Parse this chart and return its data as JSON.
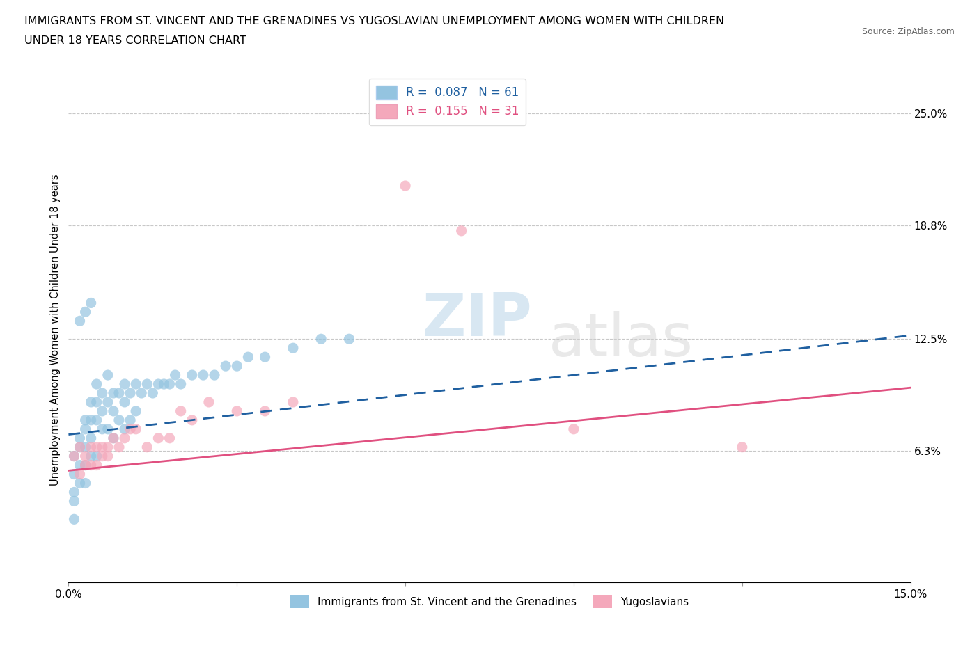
{
  "title_line1": "IMMIGRANTS FROM ST. VINCENT AND THE GRENADINES VS YUGOSLAVIAN UNEMPLOYMENT AMONG WOMEN WITH CHILDREN",
  "title_line2": "UNDER 18 YEARS CORRELATION CHART",
  "source": "Source: ZipAtlas.com",
  "ylabel": "Unemployment Among Women with Children Under 18 years",
  "xlim": [
    0.0,
    0.15
  ],
  "ylim": [
    -0.01,
    0.27
  ],
  "xticks": [
    0.0,
    0.03,
    0.06,
    0.09,
    0.12,
    0.15
  ],
  "xticklabels": [
    "0.0%",
    "",
    "",
    "",
    "",
    "15.0%"
  ],
  "ytick_positions": [
    0.063,
    0.125,
    0.188,
    0.25
  ],
  "ytick_labels": [
    "6.3%",
    "12.5%",
    "18.8%",
    "25.0%"
  ],
  "grid_color": "#c8c8c8",
  "background_color": "#ffffff",
  "blue_color": "#94c4e0",
  "pink_color": "#f4a8bb",
  "blue_line_color": "#2060a0",
  "pink_line_color": "#e05080",
  "R1": 0.087,
  "N1": 61,
  "R2": 0.155,
  "N2": 31,
  "legend_label1": "Immigrants from St. Vincent and the Grenadines",
  "legend_label2": "Yugoslavians",
  "watermark_zip": "ZIP",
  "watermark_atlas": "atlas",
  "blue_trend_start_y": 0.072,
  "blue_trend_end_y": 0.127,
  "pink_trend_start_y": 0.052,
  "pink_trend_end_y": 0.098,
  "blue_scatter_x": [
    0.001,
    0.001,
    0.001,
    0.001,
    0.001,
    0.002,
    0.002,
    0.002,
    0.002,
    0.003,
    0.003,
    0.003,
    0.003,
    0.003,
    0.004,
    0.004,
    0.004,
    0.004,
    0.005,
    0.005,
    0.005,
    0.005,
    0.006,
    0.006,
    0.006,
    0.007,
    0.007,
    0.007,
    0.008,
    0.008,
    0.008,
    0.009,
    0.009,
    0.01,
    0.01,
    0.01,
    0.011,
    0.011,
    0.012,
    0.012,
    0.013,
    0.014,
    0.015,
    0.016,
    0.017,
    0.018,
    0.019,
    0.02,
    0.022,
    0.024,
    0.026,
    0.028,
    0.03,
    0.032,
    0.035,
    0.04,
    0.045,
    0.05,
    0.002,
    0.003,
    0.004
  ],
  "blue_scatter_y": [
    0.05,
    0.04,
    0.06,
    0.035,
    0.025,
    0.07,
    0.065,
    0.055,
    0.045,
    0.08,
    0.075,
    0.065,
    0.055,
    0.045,
    0.09,
    0.08,
    0.07,
    0.06,
    0.1,
    0.09,
    0.08,
    0.06,
    0.095,
    0.085,
    0.075,
    0.105,
    0.09,
    0.075,
    0.095,
    0.085,
    0.07,
    0.095,
    0.08,
    0.1,
    0.09,
    0.075,
    0.095,
    0.08,
    0.1,
    0.085,
    0.095,
    0.1,
    0.095,
    0.1,
    0.1,
    0.1,
    0.105,
    0.1,
    0.105,
    0.105,
    0.105,
    0.11,
    0.11,
    0.115,
    0.115,
    0.12,
    0.125,
    0.125,
    0.135,
    0.14,
    0.145
  ],
  "pink_scatter_x": [
    0.001,
    0.002,
    0.002,
    0.003,
    0.003,
    0.004,
    0.004,
    0.005,
    0.005,
    0.006,
    0.006,
    0.007,
    0.007,
    0.008,
    0.009,
    0.01,
    0.011,
    0.012,
    0.014,
    0.016,
    0.018,
    0.02,
    0.022,
    0.025,
    0.03,
    0.035,
    0.04,
    0.06,
    0.07,
    0.09,
    0.12
  ],
  "pink_scatter_y": [
    0.06,
    0.05,
    0.065,
    0.055,
    0.06,
    0.055,
    0.065,
    0.065,
    0.055,
    0.065,
    0.06,
    0.06,
    0.065,
    0.07,
    0.065,
    0.07,
    0.075,
    0.075,
    0.065,
    0.07,
    0.07,
    0.085,
    0.08,
    0.09,
    0.085,
    0.085,
    0.09,
    0.21,
    0.185,
    0.075,
    0.065
  ]
}
